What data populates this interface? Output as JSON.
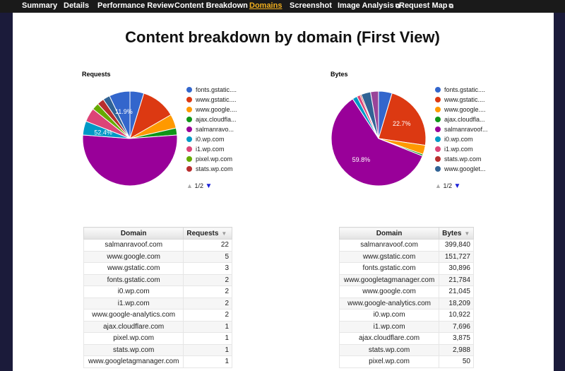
{
  "nav": {
    "tabs": [
      {
        "label": "Summary",
        "active": false,
        "external": false
      },
      {
        "label": "Details",
        "active": false,
        "external": false
      },
      {
        "label": "Performance Review",
        "active": false,
        "external": false
      },
      {
        "label": "Content Breakdown",
        "active": false,
        "external": false
      },
      {
        "label": "Domains",
        "active": true,
        "external": false
      },
      {
        "label": "Screenshot",
        "active": false,
        "external": false
      },
      {
        "label": "Image Analysis",
        "active": false,
        "external": true
      },
      {
        "label": "Request Map",
        "active": false,
        "external": true
      }
    ]
  },
  "page_title": "Content breakdown by domain (First View)",
  "colors": {
    "nav_bg": "#1a1a1a",
    "active_tab": "#f2b01e",
    "page_bg": "#1b1b3a",
    "panel_bg": "#ffffff"
  },
  "chart_data": [
    {
      "type": "pie",
      "title": "Requests",
      "slices": [
        {
          "label": "salmanravoof.com",
          "value": 22,
          "color": "#990099"
        },
        {
          "label": "www.google.com",
          "value": 5,
          "color": "#dc3912"
        },
        {
          "label": "www.gstatic.com",
          "value": 3,
          "color": "#3366cc"
        },
        {
          "label": "fonts.gstatic.com",
          "value": 2,
          "color": "#3366cc"
        },
        {
          "label": "i0.wp.com",
          "value": 2,
          "color": "#0099c6"
        },
        {
          "label": "i1.wp.com",
          "value": 2,
          "color": "#dd4477"
        },
        {
          "label": "www.google-analytics.com",
          "value": 2,
          "color": "#ff9900"
        },
        {
          "label": "ajax.cloudflare.com",
          "value": 1,
          "color": "#109618"
        },
        {
          "label": "pixel.wp.com",
          "value": 1,
          "color": "#66aa00"
        },
        {
          "label": "stats.wp.com",
          "value": 1,
          "color": "#b82e2e"
        },
        {
          "label": "www.googletagmanager.com",
          "value": 1,
          "color": "#316395"
        }
      ],
      "order": [
        3,
        1,
        6,
        7,
        0,
        4,
        5,
        8,
        9,
        10,
        2
      ],
      "colors_by_order": [
        "#3366cc",
        "#dc3912",
        "#ff9900",
        "#109618",
        "#990099",
        "#0099c6",
        "#dd4477",
        "#66aa00",
        "#b82e2e",
        "#316395",
        "#994499"
      ],
      "data_labels": [
        {
          "slice": 2,
          "text": "11.9%"
        },
        {
          "slice": 4,
          "text": "52.4%"
        }
      ],
      "legend": [
        "fonts.gstatic....",
        "www.gstatic....",
        "www.google....",
        "ajax.cloudfla...",
        "salmanravo...",
        "i0.wp.com",
        "i1.wp.com",
        "pixel.wp.com",
        "stats.wp.com"
      ],
      "legend_colors": [
        "#3366cc",
        "#dc3912",
        "#ff9900",
        "#109618",
        "#990099",
        "#0099c6",
        "#dd4477",
        "#66aa00",
        "#b82e2e"
      ],
      "pager": "1/2"
    },
    {
      "type": "pie",
      "title": "Bytes",
      "slices": [
        {
          "label": "fonts.gstatic.com",
          "value": 30896,
          "color": "#3366cc"
        },
        {
          "label": "www.gstatic.com",
          "value": 151727,
          "color": "#dc3912"
        },
        {
          "label": "www.google.com",
          "value": 21045,
          "color": "#ff9900"
        },
        {
          "label": "ajax.cloudflare.com",
          "value": 3875,
          "color": "#109618"
        },
        {
          "label": "salmanravoof.com",
          "value": 399840,
          "color": "#990099"
        },
        {
          "label": "i0.wp.com",
          "value": 10922,
          "color": "#0099c6"
        },
        {
          "label": "i1.wp.com",
          "value": 7696,
          "color": "#dd4477"
        },
        {
          "label": "stats.wp.com",
          "value": 2988,
          "color": "#b82e2e"
        },
        {
          "label": "www.googletagmanager.com",
          "value": 21784,
          "color": "#316395"
        },
        {
          "label": "www.google-analytics.com",
          "value": 18209,
          "color": "#994499"
        },
        {
          "label": "pixel.wp.com",
          "value": 50,
          "color": "#22aa99"
        }
      ],
      "data_labels": [
        {
          "slice": 1,
          "text": "22.7%"
        },
        {
          "slice": 4,
          "text": "59.8%"
        }
      ],
      "legend": [
        "fonts.gstatic....",
        "www.gstatic....",
        "www.google....",
        "ajax.cloudfla...",
        "salmanravoof...",
        "i0.wp.com",
        "i1.wp.com",
        "stats.wp.com",
        "www.googlet..."
      ],
      "legend_colors": [
        "#3366cc",
        "#dc3912",
        "#ff9900",
        "#109618",
        "#990099",
        "#0099c6",
        "#dd4477",
        "#b82e2e",
        "#316395"
      ],
      "pager": "1/2"
    }
  ],
  "requests_table": {
    "headers": [
      "Domain",
      "Requests"
    ],
    "rows": [
      [
        "salmanravoof.com",
        "22"
      ],
      [
        "www.google.com",
        "5"
      ],
      [
        "www.gstatic.com",
        "3"
      ],
      [
        "fonts.gstatic.com",
        "2"
      ],
      [
        "i0.wp.com",
        "2"
      ],
      [
        "i1.wp.com",
        "2"
      ],
      [
        "www.google-analytics.com",
        "2"
      ],
      [
        "ajax.cloudflare.com",
        "1"
      ],
      [
        "pixel.wp.com",
        "1"
      ],
      [
        "stats.wp.com",
        "1"
      ],
      [
        "www.googletagmanager.com",
        "1"
      ]
    ]
  },
  "bytes_table": {
    "headers": [
      "Domain",
      "Bytes"
    ],
    "rows": [
      [
        "salmanravoof.com",
        "399,840"
      ],
      [
        "www.gstatic.com",
        "151,727"
      ],
      [
        "fonts.gstatic.com",
        "30,896"
      ],
      [
        "www.googletagmanager.com",
        "21,784"
      ],
      [
        "www.google.com",
        "21,045"
      ],
      [
        "www.google-analytics.com",
        "18,209"
      ],
      [
        "i0.wp.com",
        "10,922"
      ],
      [
        "i1.wp.com",
        "7,696"
      ],
      [
        "ajax.cloudflare.com",
        "3,875"
      ],
      [
        "stats.wp.com",
        "2,988"
      ],
      [
        "pixel.wp.com",
        "50"
      ]
    ]
  }
}
